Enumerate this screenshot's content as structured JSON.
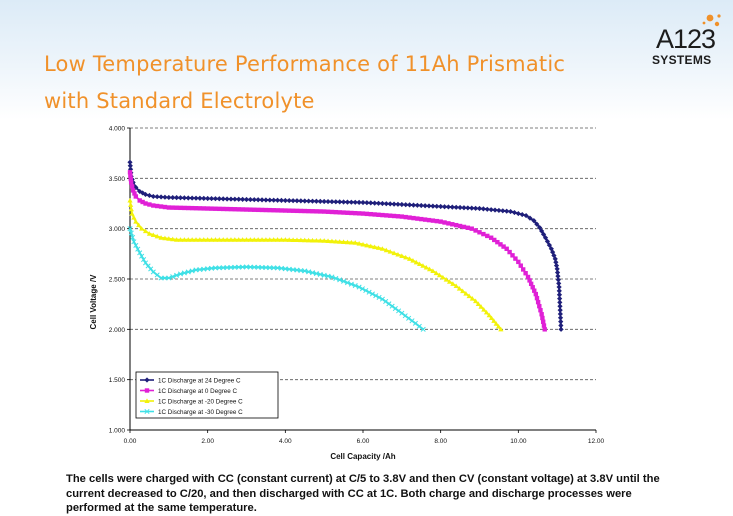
{
  "title_lines": [
    "Low Temperature Performance of 11Ah Prismatic",
    "with Standard Electrolyte"
  ],
  "logo": {
    "brand": "A123",
    "sub": "SYSTEMS"
  },
  "caption": "The cells were charged with CC (constant current) at C/5 to 3.8V and then CV (constant voltage) at 3.8V until the current decreased to C/20, and then discharged with CC at 1C.  Both charge and discharge processes were performed at the same temperature.",
  "chart_data": {
    "type": "line",
    "title": "",
    "xlabel": "Cell Capacity /Ah",
    "ylabel": "Cell Voltage /V",
    "xlim": [
      0,
      12
    ],
    "ylim": [
      1.0,
      4.0
    ],
    "x_ticks": [
      "0.00",
      "2.00",
      "4.00",
      "6.00",
      "8.00",
      "10.00",
      "12.00"
    ],
    "y_ticks": [
      "1.000",
      "1.500",
      "2.000",
      "2.500",
      "3.000",
      "3.500",
      "4.000"
    ],
    "grid": "horizontal dashed",
    "legend_position": "bottom-left",
    "series": [
      {
        "name": "1C Discharge at 24 Degree C",
        "color": "#1f1f7a",
        "marker": "diamond",
        "points": [
          [
            0.0,
            3.66
          ],
          [
            0.03,
            3.52
          ],
          [
            0.08,
            3.46
          ],
          [
            0.15,
            3.41
          ],
          [
            0.25,
            3.37
          ],
          [
            0.4,
            3.34
          ],
          [
            0.6,
            3.32
          ],
          [
            1.0,
            3.31
          ],
          [
            2.0,
            3.3
          ],
          [
            3.0,
            3.29
          ],
          [
            4.0,
            3.28
          ],
          [
            5.0,
            3.27
          ],
          [
            6.0,
            3.26
          ],
          [
            7.0,
            3.24
          ],
          [
            8.0,
            3.22
          ],
          [
            9.0,
            3.2
          ],
          [
            9.8,
            3.17
          ],
          [
            10.2,
            3.13
          ],
          [
            10.4,
            3.08
          ],
          [
            10.55,
            3.01
          ],
          [
            10.7,
            2.91
          ],
          [
            10.85,
            2.8
          ],
          [
            10.95,
            2.7
          ],
          [
            11.0,
            2.6
          ],
          [
            11.05,
            2.42
          ],
          [
            11.1,
            2.0
          ]
        ]
      },
      {
        "name": "1C Discharge at 0 Degree C",
        "color": "#e020d6",
        "marker": "square",
        "points": [
          [
            0.0,
            3.56
          ],
          [
            0.03,
            3.46
          ],
          [
            0.08,
            3.38
          ],
          [
            0.15,
            3.32
          ],
          [
            0.25,
            3.28
          ],
          [
            0.4,
            3.25
          ],
          [
            0.6,
            3.23
          ],
          [
            1.0,
            3.21
          ],
          [
            2.0,
            3.2
          ],
          [
            3.0,
            3.19
          ],
          [
            4.0,
            3.18
          ],
          [
            5.0,
            3.17
          ],
          [
            6.0,
            3.15
          ],
          [
            7.0,
            3.12
          ],
          [
            8.0,
            3.07
          ],
          [
            8.8,
            3.0
          ],
          [
            9.3,
            2.91
          ],
          [
            9.7,
            2.8
          ],
          [
            10.0,
            2.67
          ],
          [
            10.25,
            2.52
          ],
          [
            10.45,
            2.35
          ],
          [
            10.6,
            2.15
          ],
          [
            10.68,
            2.0
          ]
        ]
      },
      {
        "name": "1C Discharge at -20 Degree C",
        "color": "#f2f20a",
        "marker": "triangle",
        "points": [
          [
            0.0,
            3.28
          ],
          [
            0.05,
            3.15
          ],
          [
            0.15,
            3.07
          ],
          [
            0.3,
            3.0
          ],
          [
            0.5,
            2.95
          ],
          [
            0.8,
            2.91
          ],
          [
            1.2,
            2.89
          ],
          [
            2.0,
            2.89
          ],
          [
            3.0,
            2.89
          ],
          [
            4.0,
            2.89
          ],
          [
            5.0,
            2.88
          ],
          [
            5.8,
            2.86
          ],
          [
            6.5,
            2.8
          ],
          [
            7.2,
            2.7
          ],
          [
            7.8,
            2.58
          ],
          [
            8.4,
            2.43
          ],
          [
            8.9,
            2.28
          ],
          [
            9.25,
            2.14
          ],
          [
            9.55,
            2.0
          ]
        ]
      },
      {
        "name": "1C Discharge at -30 Degree C",
        "color": "#3fe0e6",
        "marker": "x",
        "points": [
          [
            0.0,
            3.0
          ],
          [
            0.1,
            2.87
          ],
          [
            0.25,
            2.76
          ],
          [
            0.4,
            2.66
          ],
          [
            0.6,
            2.57
          ],
          [
            0.8,
            2.51
          ],
          [
            1.0,
            2.51
          ],
          [
            1.3,
            2.55
          ],
          [
            1.7,
            2.59
          ],
          [
            2.2,
            2.61
          ],
          [
            3.0,
            2.62
          ],
          [
            3.8,
            2.61
          ],
          [
            4.5,
            2.58
          ],
          [
            5.2,
            2.52
          ],
          [
            5.9,
            2.42
          ],
          [
            6.5,
            2.3
          ],
          [
            7.0,
            2.16
          ],
          [
            7.35,
            2.06
          ],
          [
            7.55,
            2.0
          ]
        ]
      }
    ]
  }
}
